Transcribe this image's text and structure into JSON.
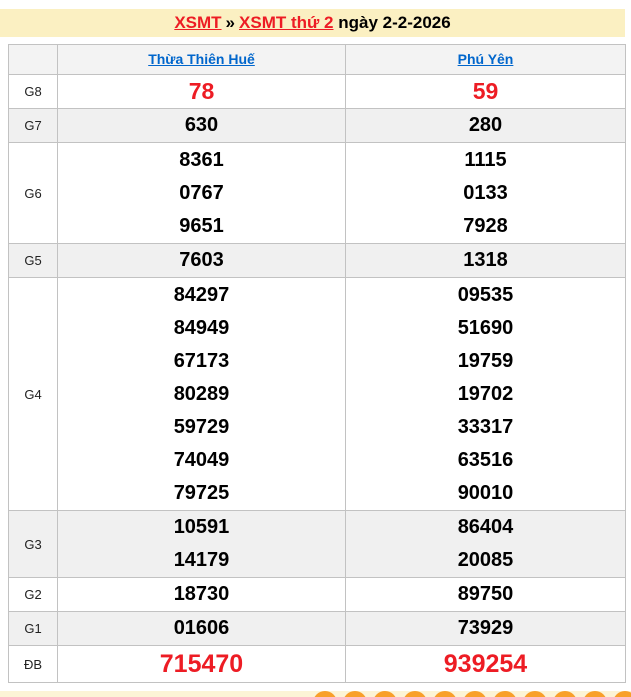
{
  "header": {
    "breadcrumb_link_1": "XSMT",
    "separator": "»",
    "breadcrumb_link_2": "XSMT thứ 2",
    "date_text": "ngày 2-2-2026"
  },
  "columns": {
    "province_1": "Thừa Thiên Huế",
    "province_2": "Phú Yên"
  },
  "results": {
    "g8": {
      "label": "G8",
      "col1": [
        "78"
      ],
      "col2": [
        "59"
      ]
    },
    "g7": {
      "label": "G7",
      "col1": [
        "630"
      ],
      "col2": [
        "280"
      ]
    },
    "g6": {
      "label": "G6",
      "col1": [
        "8361",
        "0767",
        "9651"
      ],
      "col2": [
        "1115",
        "0133",
        "7928"
      ]
    },
    "g5": {
      "label": "G5",
      "col1": [
        "7603"
      ],
      "col2": [
        "1318"
      ]
    },
    "g4": {
      "label": "G4",
      "col1": [
        "84297",
        "84949",
        "67173",
        "80289",
        "59729",
        "74049",
        "79725"
      ],
      "col2": [
        "09535",
        "51690",
        "19759",
        "19702",
        "33317",
        "63516",
        "90010"
      ]
    },
    "g3": {
      "label": "G3",
      "col1": [
        "10591",
        "14179"
      ],
      "col2": [
        "86404",
        "20085"
      ]
    },
    "g2": {
      "label": "G2",
      "col1": [
        "18730"
      ],
      "col2": [
        "89750"
      ]
    },
    "g1": {
      "label": "G1",
      "col1": [
        "01606"
      ],
      "col2": [
        "73929"
      ]
    },
    "db": {
      "label": "ĐB",
      "col1": [
        "715470"
      ],
      "col2": [
        "939254"
      ]
    }
  },
  "colors": {
    "accent_red": "#ED1C24",
    "link_blue": "#0066CC",
    "band_yellow": "#FBF0C2",
    "row_gray": "#F0F0F0",
    "ball_orange": "#F8A02B",
    "footer_cream": "#FCF4D6"
  },
  "footer": {
    "ball_icon_count": 11
  }
}
